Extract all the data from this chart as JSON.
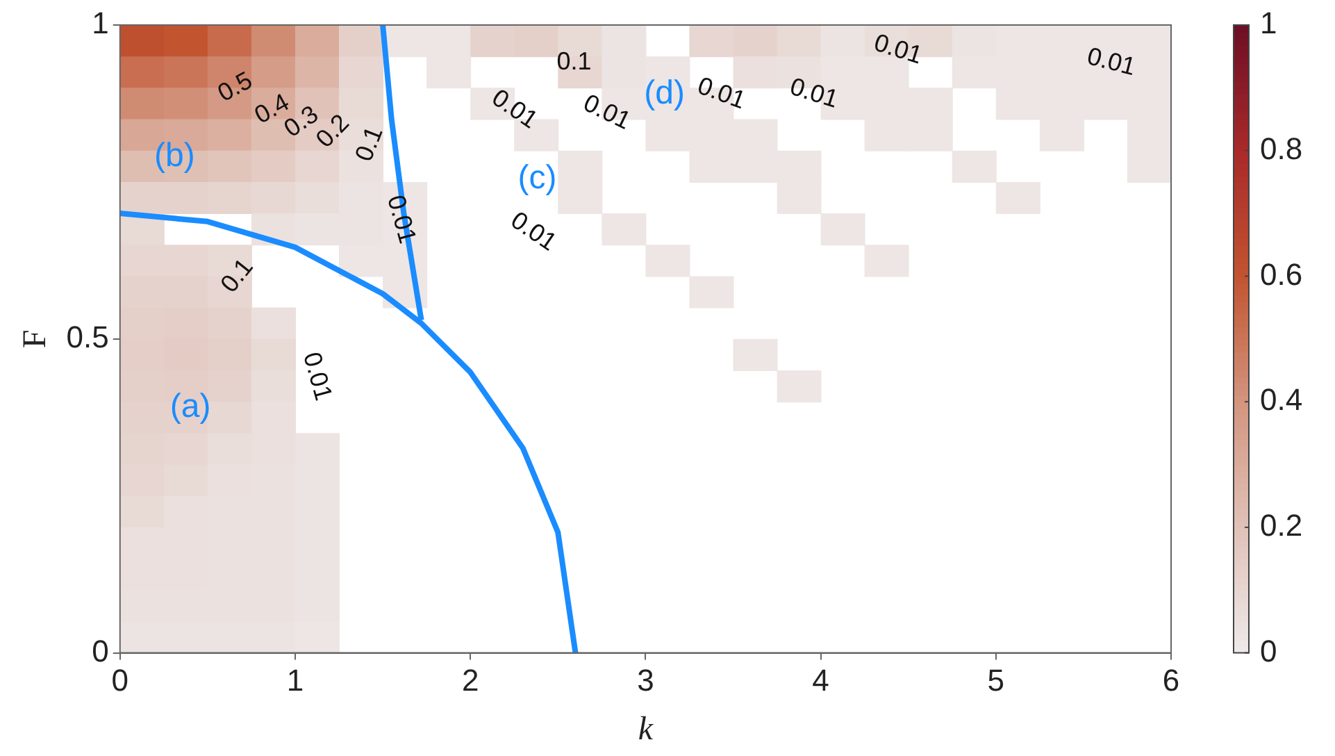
{
  "chart_data": {
    "type": "heatmap",
    "xlabel": "k",
    "ylabel": "F",
    "x": [
      0.125,
      0.375,
      0.625,
      0.875,
      1.125,
      1.375,
      1.625,
      1.875,
      2.125,
      2.375,
      2.625,
      2.875,
      3.125,
      3.375,
      3.625,
      3.875,
      4.125,
      4.375,
      4.625,
      4.875,
      5.125,
      5.375,
      5.625,
      5.875
    ],
    "y": [
      0.975,
      0.925,
      0.875,
      0.825,
      0.775,
      0.725,
      0.675,
      0.625,
      0.575,
      0.525,
      0.475,
      0.425,
      0.375,
      0.325,
      0.275,
      0.225,
      0.175,
      0.125,
      0.075,
      0.025
    ],
    "cells": [
      [
        0.62,
        0.6,
        0.53,
        0.43,
        0.3,
        0.13,
        0.02,
        0.02,
        0.12,
        0.13,
        0.08,
        0.03,
        null,
        0.1,
        0.12,
        0.08,
        0.03,
        0.06,
        0.08,
        0.03,
        0.02,
        0.02,
        0.02,
        0.02
      ],
      [
        0.52,
        0.5,
        0.45,
        0.37,
        0.26,
        0.1,
        null,
        0.02,
        null,
        null,
        0.1,
        0.03,
        0.02,
        null,
        0.05,
        0.04,
        0.02,
        0.02,
        null,
        0.02,
        0.02,
        0.02,
        0.02,
        0.02
      ],
      [
        0.43,
        0.42,
        0.38,
        0.3,
        0.2,
        0.08,
        null,
        null,
        0.02,
        null,
        null,
        0.02,
        0.02,
        0.02,
        null,
        null,
        0.02,
        0.02,
        0.02,
        null,
        0.02,
        0.02,
        0.02,
        0.02
      ],
      [
        0.32,
        0.31,
        0.28,
        0.22,
        0.15,
        0.06,
        null,
        null,
        null,
        0.02,
        null,
        null,
        0.02,
        0.02,
        0.02,
        null,
        null,
        0.02,
        0.02,
        null,
        null,
        0.02,
        null,
        0.02
      ],
      [
        0.22,
        0.21,
        0.19,
        0.15,
        0.1,
        0.04,
        null,
        null,
        null,
        null,
        0.02,
        null,
        null,
        0.02,
        0.02,
        0.02,
        null,
        null,
        null,
        0.02,
        null,
        null,
        null,
        0.02
      ],
      [
        0.12,
        0.12,
        0.11,
        0.09,
        0.06,
        0.03,
        0.02,
        null,
        null,
        null,
        0.02,
        null,
        null,
        null,
        null,
        0.02,
        null,
        null,
        null,
        null,
        0.02,
        null,
        null,
        null
      ],
      [
        0.08,
        null,
        null,
        0.04,
        0.03,
        0.03,
        0.02,
        null,
        null,
        null,
        null,
        0.02,
        null,
        null,
        null,
        null,
        0.02,
        null,
        null,
        null,
        null,
        null,
        null,
        null
      ],
      [
        0.1,
        0.1,
        0.08,
        null,
        null,
        0.02,
        0.02,
        null,
        null,
        null,
        null,
        null,
        0.02,
        null,
        null,
        null,
        null,
        0.02,
        null,
        null,
        null,
        null,
        null,
        null
      ],
      [
        0.12,
        0.12,
        0.1,
        null,
        null,
        null,
        0.02,
        null,
        null,
        null,
        null,
        null,
        null,
        0.02,
        null,
        null,
        null,
        null,
        null,
        null,
        null,
        null,
        null,
        null
      ],
      [
        0.13,
        0.14,
        0.12,
        0.05,
        null,
        null,
        null,
        null,
        null,
        null,
        null,
        null,
        null,
        null,
        null,
        null,
        null,
        null,
        null,
        null,
        null,
        null,
        null,
        null
      ],
      [
        0.14,
        0.15,
        0.13,
        0.08,
        null,
        null,
        null,
        null,
        null,
        null,
        null,
        null,
        null,
        null,
        0.02,
        null,
        null,
        null,
        null,
        null,
        null,
        null,
        null,
        null
      ],
      [
        0.13,
        0.14,
        0.12,
        0.06,
        null,
        null,
        null,
        null,
        null,
        null,
        null,
        null,
        null,
        null,
        null,
        0.02,
        null,
        null,
        null,
        null,
        null,
        null,
        null,
        null
      ],
      [
        0.12,
        0.12,
        0.09,
        0.05,
        null,
        null,
        null,
        null,
        null,
        null,
        null,
        null,
        null,
        null,
        null,
        null,
        null,
        null,
        null,
        null,
        null,
        null,
        null,
        null
      ],
      [
        0.11,
        0.1,
        0.06,
        0.05,
        0.03,
        null,
        null,
        null,
        null,
        null,
        null,
        null,
        null,
        null,
        null,
        null,
        null,
        null,
        null,
        null,
        null,
        null,
        null,
        null
      ],
      [
        0.1,
        0.08,
        0.05,
        0.04,
        0.03,
        null,
        null,
        null,
        null,
        null,
        null,
        null,
        null,
        null,
        null,
        null,
        null,
        null,
        null,
        null,
        null,
        null,
        null,
        null
      ],
      [
        0.08,
        0.05,
        0.04,
        0.04,
        0.03,
        null,
        null,
        null,
        null,
        null,
        null,
        null,
        null,
        null,
        null,
        null,
        null,
        null,
        null,
        null,
        null,
        null,
        null,
        null
      ],
      [
        0.05,
        0.05,
        0.04,
        0.04,
        0.03,
        null,
        null,
        null,
        null,
        null,
        null,
        null,
        null,
        null,
        null,
        null,
        null,
        null,
        null,
        null,
        null,
        null,
        null,
        null
      ],
      [
        0.05,
        0.05,
        0.04,
        0.04,
        0.03,
        null,
        null,
        null,
        null,
        null,
        null,
        null,
        null,
        null,
        null,
        null,
        null,
        null,
        null,
        null,
        null,
        null,
        null,
        null
      ],
      [
        0.04,
        0.04,
        0.04,
        0.04,
        0.03,
        null,
        null,
        null,
        null,
        null,
        null,
        null,
        null,
        null,
        null,
        null,
        null,
        null,
        null,
        null,
        null,
        null,
        null,
        null
      ],
      [
        0.03,
        0.03,
        0.03,
        0.03,
        0.02,
        null,
        null,
        null,
        null,
        null,
        null,
        null,
        null,
        null,
        null,
        null,
        null,
        null,
        null,
        null,
        null,
        null,
        null,
        null
      ]
    ],
    "clim": [
      0,
      1
    ],
    "cticks": [
      0,
      0.2,
      0.4,
      0.6,
      0.8,
      1
    ],
    "xlim": [
      0,
      6
    ],
    "xticks": [
      0,
      1,
      2,
      3,
      4,
      5,
      6
    ],
    "ylim": [
      0,
      1
    ],
    "yticks": [
      0,
      0.5,
      1
    ],
    "series": [
      {
        "type": "line",
        "color": "#1a8cff",
        "x": [
          0,
          0.5,
          1.0,
          1.5,
          1.72,
          2.0,
          2.3,
          2.5,
          2.6
        ],
        "values": [
          0.7,
          0.687,
          0.646,
          0.572,
          0.525,
          0.447,
          0.326,
          0.192,
          0
        ]
      },
      {
        "type": "line",
        "color": "#1a8cff",
        "x": [
          1.72,
          1.62,
          1.55,
          1.5
        ],
        "values": [
          0.53,
          0.7,
          0.85,
          1.0
        ]
      }
    ],
    "annotations": [
      "0.5",
      "0.4",
      "0.3",
      "0.2",
      "0.1",
      "0.01",
      "0.1",
      "0.01",
      "0.1",
      "0.01",
      "0.01",
      "0.01",
      "0.01",
      "0.01",
      "0.01",
      "0.01",
      "(a)",
      "(b)",
      "(c)",
      "(d)"
    ]
  }
}
